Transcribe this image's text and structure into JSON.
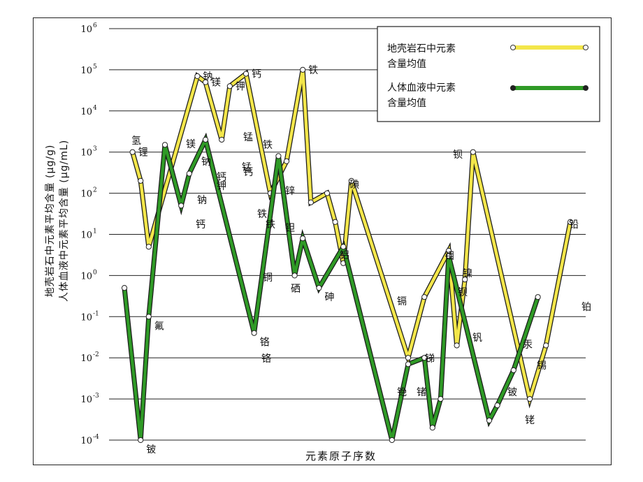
{
  "chart_data": {
    "type": "line",
    "ylabels": [
      "地壳岩石中元素平均含量 (μg/g)",
      "人体血液中元素平均含量 (μg/mL)"
    ],
    "xlabel": "元素原子序数",
    "yscale": "log",
    "ylim": [
      0.0001,
      1000000
    ],
    "y_ticks": [
      {
        "base": "10",
        "exp": "-4",
        "value": 0.0001
      },
      {
        "base": "10",
        "exp": "-3",
        "value": 0.001
      },
      {
        "base": "10",
        "exp": "-2",
        "value": 0.01
      },
      {
        "base": "10",
        "exp": "-1",
        "value": 0.1
      },
      {
        "base": "10",
        "exp": "0",
        "value": 1
      },
      {
        "base": "10",
        "exp": "1",
        "value": 10
      },
      {
        "base": "10",
        "exp": "2",
        "value": 100
      },
      {
        "base": "10",
        "exp": "3",
        "value": 1000
      },
      {
        "base": "10",
        "exp": "4",
        "value": 10000
      },
      {
        "base": "10",
        "exp": "5",
        "value": 100000
      },
      {
        "base": "10",
        "exp": "6",
        "value": 1000000
      }
    ],
    "grid": true,
    "legend_position": "top-right",
    "series": [
      {
        "name": "地壳岩石中元素含量均值",
        "color": "#f3e64a",
        "points": [
          {
            "x": 3,
            "y": 1000,
            "label": "锂"
          },
          {
            "x": 4,
            "y": 200
          },
          {
            "x": 5,
            "y": 5
          },
          {
            "x": 11,
            "y": 70000,
            "label": "钠"
          },
          {
            "x": 12,
            "y": 50000,
            "label": "镁"
          },
          {
            "x": 14,
            "y": 2000
          },
          {
            "x": 15,
            "y": 40000,
            "label": "钾"
          },
          {
            "x": 17,
            "y": 80000,
            "label": "钙"
          },
          {
            "x": 20,
            "y": 100
          },
          {
            "x": 22,
            "y": 600
          },
          {
            "x": 24,
            "y": 100000,
            "label": "铁"
          },
          {
            "x": 25,
            "y": 60
          },
          {
            "x": 27,
            "y": 100
          },
          {
            "x": 28,
            "y": 20
          },
          {
            "x": 29,
            "y": 2
          },
          {
            "x": 30,
            "y": 200
          },
          {
            "x": 37,
            "y": 0.01
          },
          {
            "x": 39,
            "y": 0.3
          },
          {
            "x": 42,
            "y": 4
          },
          {
            "x": 43,
            "y": 0.02
          },
          {
            "x": 44,
            "y": 0.8
          },
          {
            "x": 45,
            "y": 1000
          },
          {
            "x": 52,
            "y": 0.001
          },
          {
            "x": 54,
            "y": 0.02
          },
          {
            "x": 57,
            "y": 20
          }
        ]
      },
      {
        "name": "人体血液中元素含量均值",
        "color": "#2f9a26",
        "points": [
          {
            "x": 2,
            "y": 0.5
          },
          {
            "x": 4,
            "y": 0.0001,
            "label": "铍"
          },
          {
            "x": 5,
            "y": 0.1,
            "label": "氟"
          },
          {
            "x": 7,
            "y": 1500
          },
          {
            "x": 9,
            "y": 50
          },
          {
            "x": 10,
            "y": 300
          },
          {
            "x": 12,
            "y": 2000
          },
          {
            "x": 18,
            "y": 0.04,
            "label": "铬"
          },
          {
            "x": 21,
            "y": 800
          },
          {
            "x": 23,
            "y": 1
          },
          {
            "x": 24,
            "y": 8
          },
          {
            "x": 26,
            "y": 0.5,
            "label": "砷"
          },
          {
            "x": 29,
            "y": 5
          },
          {
            "x": 35,
            "y": 0.0001
          },
          {
            "x": 37,
            "y": 0.007
          },
          {
            "x": 39,
            "y": 0.01
          },
          {
            "x": 40,
            "y": 0.0002
          },
          {
            "x": 41,
            "y": 0.001
          },
          {
            "x": 42,
            "y": 3
          },
          {
            "x": 47,
            "y": 0.0003
          },
          {
            "x": 48,
            "y": 0.0007
          },
          {
            "x": 50,
            "y": 0.005
          },
          {
            "x": 53,
            "y": 0.3
          }
        ]
      }
    ],
    "annotations": [
      "氢",
      "钠",
      "钾",
      "锰",
      "钙",
      "铁",
      "镁",
      "钠",
      "钙",
      "铁",
      "硒",
      "锰",
      "铜",
      "铬",
      "锌",
      "钡",
      "钽",
      "镉",
      "锑",
      "钼",
      "镍",
      "钒",
      "钡",
      "铯",
      "锗",
      "碘",
      "铝",
      "汞",
      "铍",
      "铑",
      "铂",
      "锡",
      "铅",
      "铁",
      "钙"
    ]
  }
}
